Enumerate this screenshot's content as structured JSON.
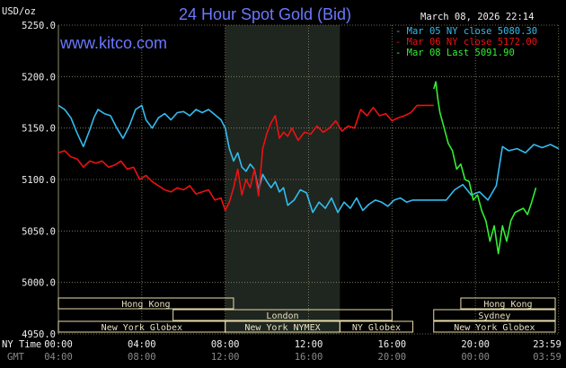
{
  "header": {
    "title": "24 Hour Spot Gold (Bid)",
    "unit": "USD/oz",
    "datetime": "March 08, 2026 22:14",
    "source": "www.kitco.com"
  },
  "colors": {
    "mar05": "#33bbee",
    "mar06": "#ee1111",
    "mar08": "#33ee33",
    "grid": "#8a8a6a",
    "shade": "#1f261f",
    "market_box": "#e8dcaa"
  },
  "legend": [
    {
      "label": "Mar 05 NY close 5080.30",
      "color": "#33bbee"
    },
    {
      "label": "Mar 06 NY close 5172.00",
      "color": "#ee1111"
    },
    {
      "label": "Mar 08 Last 5091.90",
      "color": "#33ee33"
    }
  ],
  "axis_labels": {
    "ny_time": "NY Time",
    "gmt": "GMT"
  },
  "markets": [
    {
      "label": "Hong Kong",
      "start": 0.0,
      "end": 8.4,
      "row": 0
    },
    {
      "label": "London",
      "start": 5.5,
      "end": 16.0,
      "row": 1
    },
    {
      "label": "New York Globex",
      "start": 0.0,
      "end": 8.0,
      "row": 2
    },
    {
      "label": "New York NYMEX",
      "start": 8.0,
      "end": 13.5,
      "row": 2
    },
    {
      "label": "NY Globex",
      "start": 13.5,
      "end": 17.0,
      "row": 2
    },
    {
      "label": "Hong Kong",
      "start": 19.3,
      "end": 24.0,
      "row": 0
    },
    {
      "label": "Sydney",
      "start": 18.0,
      "end": 24.0,
      "row": 1
    },
    {
      "label": "New York Globex",
      "start": 18.0,
      "end": 24.0,
      "row": 2
    }
  ],
  "chart_data": {
    "type": "line",
    "title": "24 Hour Spot Gold (Bid)",
    "ylabel": "USD/oz",
    "xlim": [
      0,
      24
    ],
    "ylim": [
      4950,
      5250
    ],
    "y_ticks": [
      "5250.0",
      "5200.0",
      "5150.0",
      "5100.0",
      "5050.0",
      "5000.0",
      "4950.0"
    ],
    "x_ticks_ny": [
      "00:00",
      "04:00",
      "08:00",
      "12:00",
      "16:00",
      "20:00",
      "23:59"
    ],
    "x_ticks_gmt": [
      "04:00",
      "08:00",
      "12:00",
      "16:00",
      "20:00",
      "00:00",
      "03:59"
    ],
    "grid": true,
    "shaded_hours": [
      8.0,
      13.5
    ],
    "legend_position": "top-right",
    "series": [
      {
        "name": "Mar 05 NY close 5080.30",
        "x": [
          0,
          0.3,
          0.6,
          0.9,
          1.2,
          1.5,
          1.7,
          1.9,
          2.2,
          2.5,
          2.8,
          3.1,
          3.4,
          3.7,
          4.0,
          4.2,
          4.5,
          4.8,
          5.1,
          5.4,
          5.7,
          6.0,
          6.3,
          6.6,
          6.9,
          7.2,
          7.5,
          7.8,
          8.0,
          8.2,
          8.4,
          8.6,
          8.8,
          9.0,
          9.2,
          9.4,
          9.6,
          9.8,
          10.0,
          10.2,
          10.4,
          10.6,
          10.8,
          11.0,
          11.3,
          11.6,
          11.9,
          12.2,
          12.5,
          12.8,
          13.1,
          13.4,
          13.7,
          14.0,
          14.3,
          14.6,
          14.9,
          15.2,
          15.5,
          15.8,
          16.1,
          16.4,
          16.7,
          17.0,
          17.3,
          17.6,
          17.9,
          18.2,
          18.6,
          19.0,
          19.4,
          19.8,
          20.2,
          20.6,
          21.0,
          21.3,
          21.6,
          22.0,
          22.4,
          22.8,
          23.2,
          23.6,
          23.99
        ],
        "values": [
          5172,
          5168,
          5160,
          5145,
          5132,
          5148,
          5160,
          5168,
          5164,
          5162,
          5150,
          5140,
          5152,
          5168,
          5172,
          5158,
          5150,
          5160,
          5164,
          5158,
          5165,
          5166,
          5162,
          5168,
          5165,
          5168,
          5163,
          5158,
          5150,
          5130,
          5118,
          5126,
          5112,
          5108,
          5115,
          5110,
          5090,
          5105,
          5098,
          5092,
          5098,
          5088,
          5092,
          5075,
          5080,
          5090,
          5087,
          5068,
          5078,
          5072,
          5082,
          5068,
          5078,
          5072,
          5082,
          5070,
          5076,
          5080,
          5078,
          5074,
          5080,
          5082,
          5078,
          5080,
          5080,
          5080,
          5080,
          5080,
          5080,
          5090,
          5095,
          5085,
          5088,
          5080,
          5094,
          5132,
          5128,
          5130,
          5126,
          5134,
          5131,
          5134,
          5130
        ]
      },
      {
        "name": "Mar 06 NY close 5172.00",
        "x": [
          0,
          0.3,
          0.6,
          0.9,
          1.2,
          1.5,
          1.8,
          2.1,
          2.4,
          2.7,
          3.0,
          3.3,
          3.6,
          3.9,
          4.2,
          4.5,
          4.8,
          5.1,
          5.4,
          5.7,
          6.0,
          6.3,
          6.6,
          6.9,
          7.2,
          7.5,
          7.8,
          8.0,
          8.2,
          8.4,
          8.6,
          8.8,
          9.0,
          9.2,
          9.4,
          9.6,
          9.8,
          10.0,
          10.2,
          10.4,
          10.6,
          10.8,
          11.0,
          11.2,
          11.5,
          11.8,
          12.1,
          12.4,
          12.7,
          13.0,
          13.3,
          13.6,
          13.9,
          14.2,
          14.5,
          14.8,
          15.1,
          15.4,
          15.7,
          16.0,
          16.3,
          16.6,
          16.9,
          17.2,
          17.5,
          17.8,
          18.0
        ],
        "values": [
          5126,
          5128,
          5122,
          5120,
          5112,
          5118,
          5116,
          5118,
          5112,
          5114,
          5118,
          5110,
          5112,
          5100,
          5104,
          5098,
          5094,
          5090,
          5088,
          5092,
          5090,
          5094,
          5086,
          5088,
          5090,
          5080,
          5082,
          5070,
          5078,
          5092,
          5110,
          5085,
          5100,
          5092,
          5110,
          5084,
          5130,
          5145,
          5155,
          5162,
          5140,
          5146,
          5142,
          5150,
          5138,
          5146,
          5144,
          5152,
          5146,
          5150,
          5157,
          5147,
          5152,
          5150,
          5168,
          5162,
          5170,
          5162,
          5164,
          5157,
          5160,
          5162,
          5165,
          5172,
          5172,
          5172,
          5172
        ]
      },
      {
        "name": "Mar 08 Last 5091.90",
        "x": [
          18.0,
          18.1,
          18.2,
          18.3,
          18.5,
          18.7,
          18.9,
          19.1,
          19.3,
          19.5,
          19.7,
          19.9,
          20.1,
          20.3,
          20.5,
          20.7,
          20.9,
          21.1,
          21.3,
          21.5,
          21.7,
          21.9,
          22.1,
          22.3,
          22.5,
          22.7,
          22.9
        ],
        "values": [
          5188,
          5195,
          5178,
          5165,
          5150,
          5135,
          5128,
          5110,
          5115,
          5100,
          5098,
          5080,
          5085,
          5070,
          5060,
          5040,
          5055,
          5028,
          5055,
          5040,
          5060,
          5068,
          5070,
          5072,
          5066,
          5078,
          5092
        ]
      }
    ]
  }
}
